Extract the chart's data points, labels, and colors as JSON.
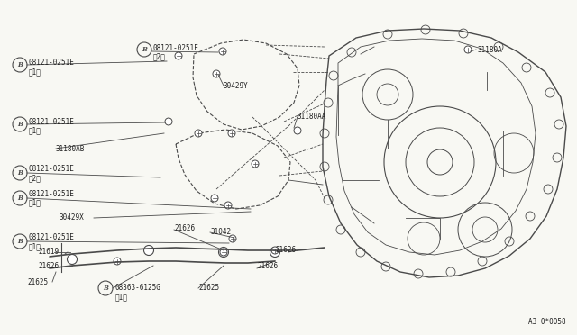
{
  "bg_color": "#f8f8f3",
  "line_color": "#4a4a4a",
  "text_color": "#222222",
  "diagram_id": "A3 0*0058",
  "figsize": [
    6.4,
    3.72
  ],
  "dpi": 100,
  "xlim": [
    0,
    640
  ],
  "ylim": [
    0,
    372
  ]
}
